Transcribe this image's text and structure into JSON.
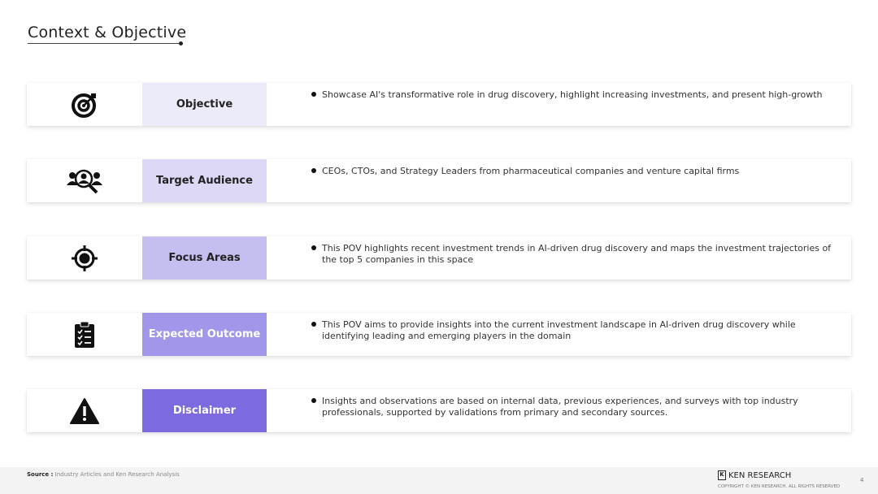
{
  "header": {
    "title": "Context & Objective"
  },
  "rows": [
    {
      "label": "Objective",
      "icon": "target-arrow-icon",
      "bg": "#ecebf9",
      "fg": "#222222",
      "text": "Showcase AI's transformative role in drug discovery, highlight increasing investments, and present high-growth"
    },
    {
      "label": "Target Audience",
      "icon": "audience-search-icon",
      "bg": "#dcd8f5",
      "fg": "#222222",
      "text": "CEOs, CTOs, and Strategy Leaders from pharmaceutical companies and venture capital firms"
    },
    {
      "label": "Focus Areas",
      "icon": "crosshair-icon",
      "bg": "#c5bef1",
      "fg": "#222222",
      "text": "This POV highlights recent investment trends in AI-driven drug discovery and maps the investment trajectories of the top 5 companies in this space"
    },
    {
      "label": "Expected Outcome",
      "icon": "clipboard-checklist-icon",
      "bg": "#a197ea",
      "fg": "#ffffff",
      "text": "This POV aims to provide insights into the current investment landscape in AI-driven drug discovery while identifying leading and emerging players in the domain"
    },
    {
      "label": "Disclaimer",
      "icon": "warning-icon",
      "bg": "#7c6be0",
      "fg": "#ffffff",
      "text": "Insights and observations are based on internal data, previous experiences, and surveys with top industry professionals, supported by validations from primary and secondary sources."
    }
  ],
  "footer": {
    "source_label": "Source :",
    "source_text": "Industry Articles and Ken Research Analysis",
    "logo_text": "KEN RESEARCH",
    "copyright": "COPYRIGHT © KEN RESEARCH. ALL RIGHTS RESERVED",
    "page": "4"
  }
}
